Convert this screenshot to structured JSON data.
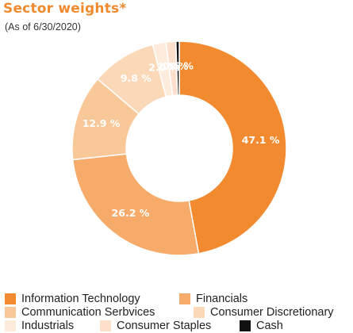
{
  "chart_data": {
    "type": "pie",
    "title": "Sector weights*",
    "subtitle": "(As of 6/30/2020)",
    "categories": [
      "Information Technology",
      "Financials",
      "Communication Serbvices",
      "Consumer Discretionary",
      "Industrials",
      "Consumer Staples",
      "Cash"
    ],
    "values": [
      47.1,
      26.2,
      12.9,
      9.8,
      2.0,
      1.5,
      0.5
    ],
    "data_labels": [
      "47.1 %",
      "26.2 %",
      "12.9 %",
      "9.8 %",
      "2.0 %",
      "1.5 %",
      "0.5 %"
    ],
    "colors": [
      "#F28A30",
      "#F6AB6A",
      "#F9C898",
      "#FBD8B8",
      "#FDEBDB",
      "#FCE0CB",
      "#111111"
    ],
    "donut": true,
    "legend_position": "bottom"
  }
}
